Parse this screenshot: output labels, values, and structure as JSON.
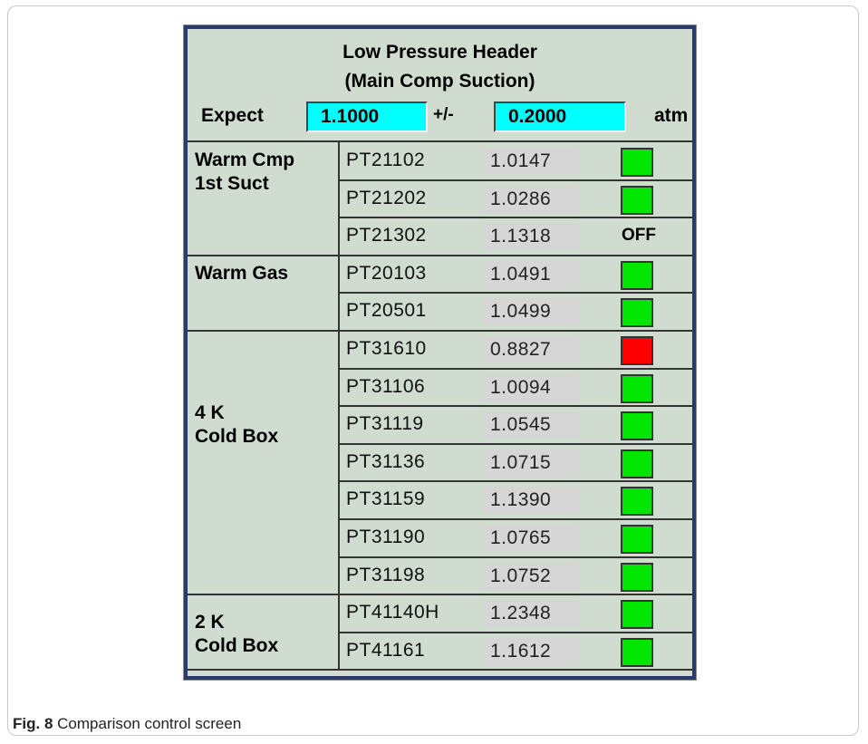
{
  "header": {
    "title": [
      "Low Pressure Header",
      "(Main Comp Suction)"
    ],
    "expect_label": "Expect",
    "expect_value": "1.1000",
    "tolerance_label": "+/-",
    "tolerance_value": "0.2000",
    "unit": "atm"
  },
  "groups": [
    {
      "label": [
        "Warm Cmp",
        "1st Suct"
      ],
      "rows": [
        {
          "tag": "PT21102",
          "value": "1.0147",
          "indicator": "#00e600"
        },
        {
          "tag": "PT21202",
          "value": "1.0286",
          "indicator": "#00e600"
        },
        {
          "tag": "PT21302",
          "value": "1.1318",
          "status": "OFF"
        }
      ]
    },
    {
      "label": [
        "Warm Gas"
      ],
      "rows": [
        {
          "tag": "PT20103",
          "value": "1.0491",
          "indicator": "#00e600"
        },
        {
          "tag": "PT20501",
          "value": "1.0499",
          "indicator": "#00e600"
        }
      ]
    },
    {
      "label": [
        "4 K",
        "Cold Box"
      ],
      "rows": [
        {
          "tag": "PT31610",
          "value": "0.8827",
          "indicator": "#ff0000"
        },
        {
          "tag": "PT31106",
          "value": "1.0094",
          "indicator": "#00e600"
        },
        {
          "tag": "PT31119",
          "value": "1.0545",
          "indicator": "#00e600"
        },
        {
          "tag": "PT31136",
          "value": "1.0715",
          "indicator": "#00e600"
        },
        {
          "tag": "PT31159",
          "value": "1.1390",
          "indicator": "#00e600"
        },
        {
          "tag": "PT31190",
          "value": "1.0765",
          "indicator": "#00e600"
        },
        {
          "tag": "PT31198",
          "value": "1.0752",
          "indicator": "#00e600"
        }
      ]
    },
    {
      "label": [
        "2 K",
        "Cold Box"
      ],
      "rows": [
        {
          "tag": "PT41140H",
          "value": "1.2348",
          "indicator": "#00e600"
        },
        {
          "tag": "PT41161",
          "value": "1.1612",
          "indicator": "#00e600"
        }
      ]
    }
  ],
  "caption": {
    "label": "Fig. 8",
    "text": "Comparison control screen"
  }
}
